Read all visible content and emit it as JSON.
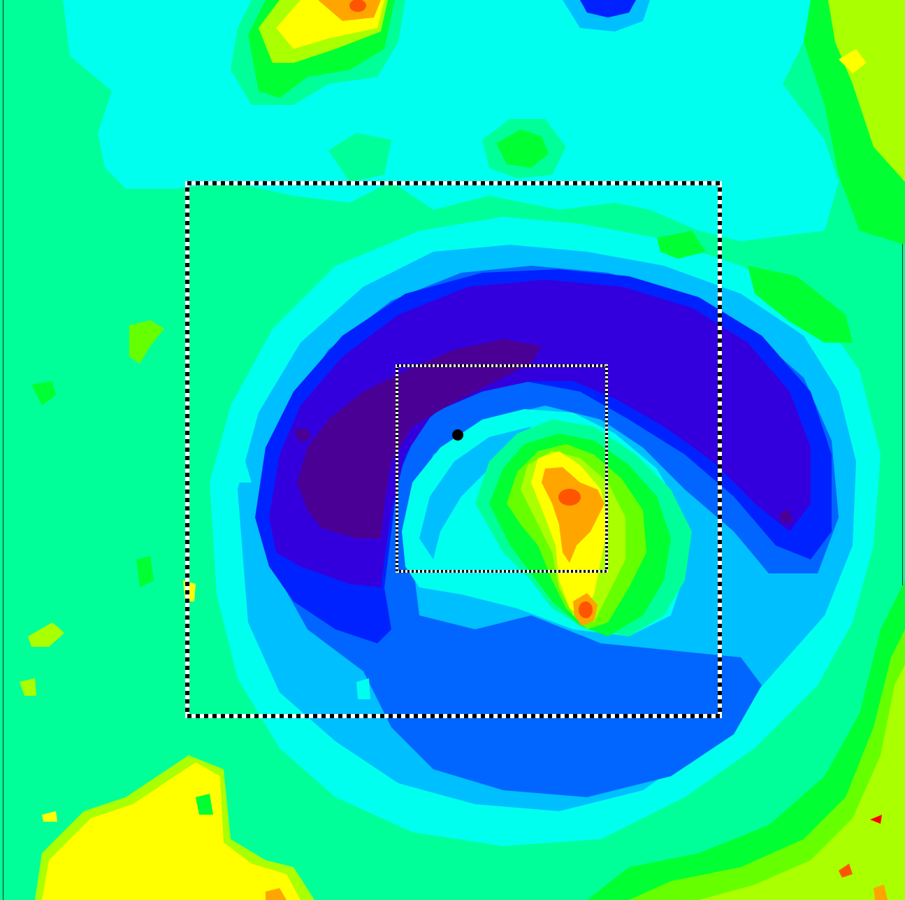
{
  "map": {
    "type": "filled-contour-map",
    "palette": {
      "level_0": "#4b0095",
      "level_1": "#3300dd",
      "level_2": "#0022ff",
      "level_3": "#0066ff",
      "level_4": "#00bfff",
      "level_5": "#00ffee",
      "level_6": "#00ff99",
      "level_7": "#00ff33",
      "level_8": "#66ff00",
      "level_9": "#aaff00",
      "level_10": "#ffff00",
      "level_11": "#ffa500",
      "level_12": "#ff5500",
      "level_13": "#ff0000"
    },
    "background_level": "level_6",
    "overlays": {
      "outer_box_style": "black-white-dashed",
      "inner_box_style": "black-white-dashed",
      "marker_color": "#000000"
    }
  }
}
